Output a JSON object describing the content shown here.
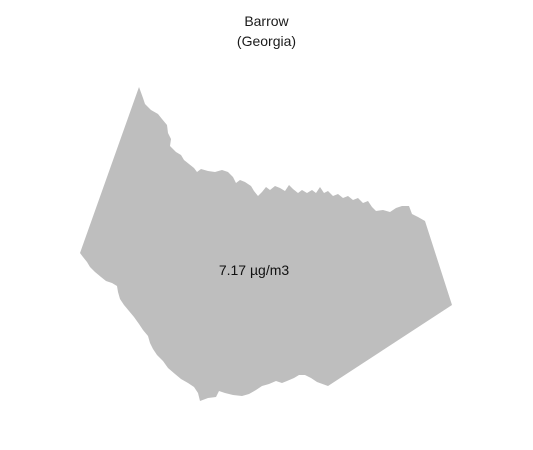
{
  "map": {
    "title": "Barrow",
    "subtitle": "(Georgia)",
    "region_value": "7.17 µg/m3",
    "fill_color": "#bebebe",
    "background_color": "#ffffff"
  }
}
